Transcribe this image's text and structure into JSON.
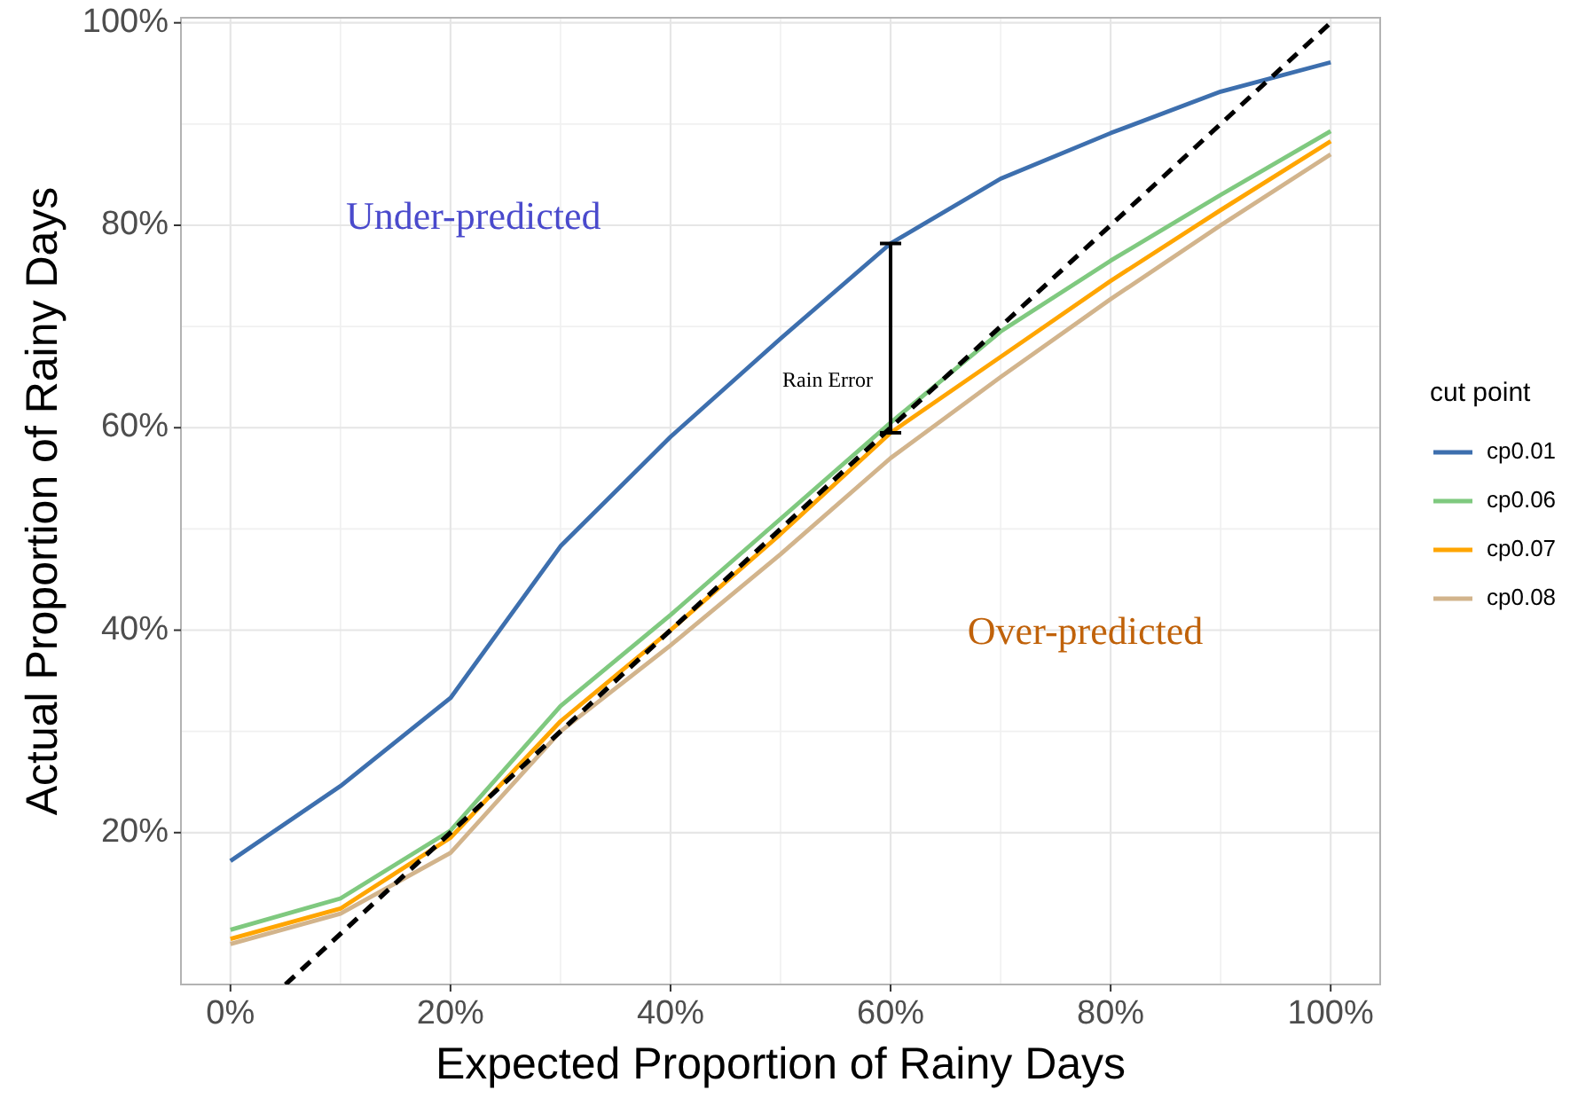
{
  "chart_data": {
    "type": "line",
    "xlabel": "Expected Proportion of Rainy Days",
    "ylabel": "Actual Proportion of Rainy Days",
    "legend_title": "cut point",
    "legend": "right",
    "grid": true,
    "x": [
      0,
      10,
      20,
      30,
      40,
      50,
      60,
      70,
      80,
      90,
      100
    ],
    "xlim": [
      -4.5,
      104.5
    ],
    "ylim": [
      5,
      100.5
    ],
    "xticks": [
      {
        "value": 0,
        "label": "0%"
      },
      {
        "value": 20,
        "label": "20%"
      },
      {
        "value": 40,
        "label": "40%"
      },
      {
        "value": 60,
        "label": "60%"
      },
      {
        "value": 80,
        "label": "80%"
      },
      {
        "value": 100,
        "label": "100%"
      }
    ],
    "yticks": [
      {
        "value": 20,
        "label": "20%"
      },
      {
        "value": 40,
        "label": "40%"
      },
      {
        "value": 60,
        "label": "60%"
      },
      {
        "value": 80,
        "label": "80%"
      },
      {
        "value": 100,
        "label": "100%"
      }
    ],
    "series": [
      {
        "name": "cp0.01",
        "color": "#3d6fae",
        "values": [
          17.2,
          24.6,
          33.3,
          48.3,
          59.1,
          68.8,
          78.2,
          84.6,
          89.1,
          93.2,
          96.1
        ]
      },
      {
        "name": "cp0.06",
        "color": "#7fc97f",
        "values": [
          10.4,
          13.5,
          20.2,
          32.5,
          41.5,
          51,
          60.5,
          69.5,
          76.5,
          83,
          89.3
        ]
      },
      {
        "name": "cp0.07",
        "color": "#ffa500",
        "values": [
          9.5,
          12.5,
          19.5,
          31,
          40,
          49.5,
          59.5,
          67,
          74.5,
          81.5,
          88.3
        ]
      },
      {
        "name": "cp0.08",
        "color": "#d2b48c",
        "values": [
          9,
          12,
          18,
          30,
          38.5,
          47.5,
          57,
          65,
          72.7,
          80,
          87
        ]
      },
      {
        "color": "#000000",
        "line_style": "dashed",
        "x": [
          5,
          100
        ],
        "values": [
          5,
          100
        ]
      }
    ],
    "annotations": [
      "Under-predicted",
      "Over-predicted",
      "Rain Error"
    ]
  }
}
